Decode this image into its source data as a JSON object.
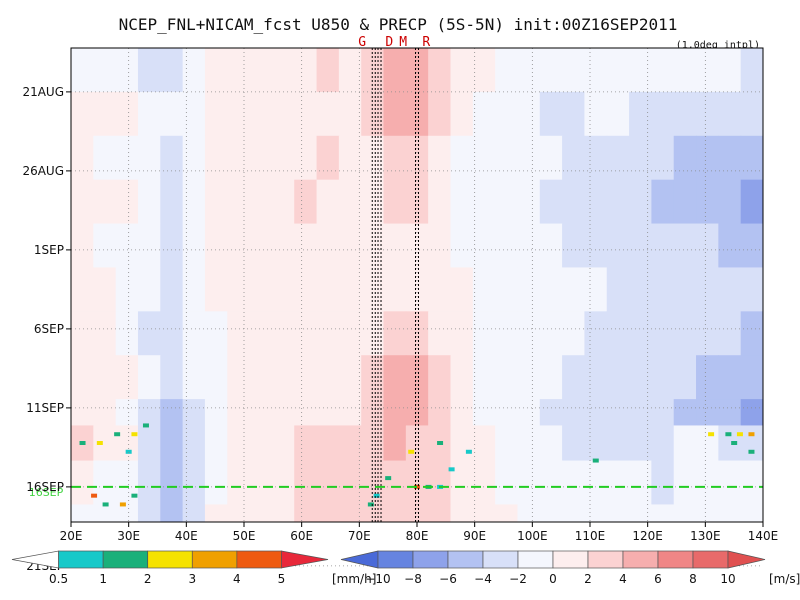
{
  "chart_data": {
    "type": "heatmap",
    "title": "NCEP_FNL+NICAM_fcst U850 & PRECP (5S-5N) init:00Z16SEP2011",
    "subtitle": "(1.0deg intpl)",
    "x_ticks": [
      "20E",
      "30E",
      "40E",
      "50E",
      "60E",
      "70E",
      "80E",
      "90E",
      "100E",
      "110E",
      "120E",
      "130E",
      "140E"
    ],
    "x_range": [
      20,
      140
    ],
    "y_ticks": [
      "21AUG",
      "26AUG",
      "1SEP",
      "6SEP",
      "11SEP",
      "16SEP",
      "21SEP"
    ],
    "init_marker": {
      "label": "16SEP",
      "color": "#22cc22"
    },
    "markers": [
      {
        "label": "G",
        "lon": 72.5,
        "color": "#cc0000"
      },
      {
        "label": "D",
        "lon": 73.5,
        "color": "#cc0000"
      },
      {
        "label": "M",
        "lon": 80.0,
        "color": "#cc0000"
      },
      {
        "label": "R",
        "lon": 80.0,
        "color": "#cc0000"
      }
    ],
    "precip_colorbar": {
      "unit": "[mm/h]",
      "ticks": [
        "0.5",
        "1",
        "2",
        "3",
        "4",
        "5"
      ],
      "colors": [
        "#ffffff",
        "#17c9c9",
        "#1ab07a",
        "#f5e200",
        "#f0a000",
        "#ee5a10",
        "#e8283a"
      ]
    },
    "u850_colorbar": {
      "unit": "[m/s]",
      "ticks": [
        "−10",
        "−8",
        "−6",
        "−4",
        "−2",
        "0",
        "2",
        "4",
        "6",
        "8",
        "10"
      ],
      "colors": [
        "#4a6ad8",
        "#6684e0",
        "#8ea2ea",
        "#b3c2f2",
        "#d8e0f8",
        "#f4f6fd",
        "#fdeeee",
        "#fbd2d2",
        "#f6aeae",
        "#f08686",
        "#e86a6a",
        "#e05050"
      ]
    },
    "rows": [
      {
        "t": 0,
        "v": [
          -1,
          -1,
          -2,
          -3,
          -4,
          -2,
          1,
          1,
          1,
          0,
          1,
          2,
          1,
          3,
          5,
          4,
          2,
          1,
          0,
          -1,
          -1,
          -2,
          -2,
          -1,
          -1,
          -1,
          -2,
          -1,
          -1,
          -2,
          -3
        ]
      },
      {
        "t": 5,
        "v": [
          1,
          1,
          0,
          -1,
          -2,
          -1,
          1,
          1,
          0,
          1,
          1,
          1,
          1,
          2,
          4,
          4,
          2,
          0,
          -1,
          -1,
          -2,
          -3,
          -3,
          -2,
          -2,
          -3,
          -3,
          -3,
          -3,
          -4,
          -4
        ]
      },
      {
        "t": 10,
        "v": [
          0,
          -1,
          -1,
          -2,
          -3,
          -1,
          1,
          0,
          1,
          1,
          1,
          2,
          1,
          1,
          3,
          3,
          1,
          -1,
          -2,
          -2,
          -2,
          -2,
          -3,
          -3,
          -3,
          -4,
          -4,
          -5,
          -5,
          -6,
          -6
        ]
      },
      {
        "t": 15,
        "v": [
          1,
          1,
          0,
          -2,
          -3,
          -1,
          0,
          1,
          1,
          1,
          2,
          1,
          1,
          1,
          2,
          2,
          0,
          -1,
          -2,
          -2,
          -2,
          -3,
          -3,
          -3,
          -4,
          -4,
          -5,
          -5,
          -6,
          -6,
          -7
        ]
      },
      {
        "t": 20,
        "v": [
          0,
          -1,
          -1,
          -2,
          -3,
          -1,
          0,
          1,
          0,
          1,
          1,
          1,
          1,
          1,
          1,
          1,
          0,
          -1,
          -1,
          -2,
          -2,
          -2,
          -3,
          -3,
          -3,
          -3,
          -4,
          -4,
          -4,
          -5,
          -5
        ]
      },
      {
        "t": 25,
        "v": [
          1,
          0,
          -1,
          -2,
          -3,
          -2,
          0,
          0,
          1,
          0,
          1,
          1,
          0,
          0,
          1,
          1,
          0,
          0,
          -1,
          -1,
          -2,
          -2,
          -2,
          -2,
          -3,
          -3,
          -3,
          -3,
          -4,
          -4,
          -4
        ]
      },
      {
        "t": 30,
        "v": [
          0,
          0,
          -1,
          -3,
          -4,
          -2,
          -1,
          0,
          0,
          0,
          0,
          1,
          0,
          1,
          2,
          2,
          1,
          0,
          -1,
          -1,
          -1,
          -2,
          -2,
          -3,
          -3,
          -3,
          -3,
          -4,
          -4,
          -4,
          -5
        ]
      },
      {
        "t": 35,
        "v": [
          1,
          1,
          0,
          -2,
          -4,
          -2,
          -1,
          0,
          0,
          1,
          1,
          1,
          1,
          2,
          4,
          4,
          2,
          0,
          -1,
          -2,
          -2,
          -2,
          -3,
          -3,
          -3,
          -3,
          -4,
          -4,
          -5,
          -5,
          -6
        ]
      },
      {
        "t": 40,
        "v": [
          1,
          0,
          -1,
          -3,
          -5,
          -3,
          -1,
          0,
          1,
          1,
          1,
          1,
          1,
          2,
          4,
          4,
          2,
          0,
          -1,
          -2,
          -2,
          -3,
          -3,
          -3,
          -4,
          -4,
          -4,
          -5,
          -5,
          -6,
          -7
        ]
      },
      {
        "t": 43,
        "v": [
          2,
          1,
          0,
          -3,
          -6,
          -4,
          -1,
          0,
          1,
          1,
          2,
          2,
          2,
          3,
          4,
          3,
          2,
          1,
          0,
          -1,
          -2,
          -2,
          -3,
          -3,
          -3,
          -3,
          -3,
          -2,
          -2,
          -3,
          -3
        ]
      },
      {
        "t": 47,
        "v": [
          0,
          -1,
          -2,
          -4,
          -6,
          -4,
          -1,
          1,
          1,
          1,
          2,
          2,
          2,
          3,
          3,
          3,
          2,
          1,
          0,
          -1,
          -1,
          -2,
          -2,
          -2,
          -2,
          -2,
          -3,
          -2,
          -2,
          -2,
          -2
        ]
      },
      {
        "t": 52,
        "v": [
          -1,
          -1,
          -2,
          -4,
          -5,
          -3,
          0,
          1,
          1,
          1,
          2,
          2,
          2,
          3,
          3,
          3,
          2,
          1,
          1,
          0,
          -1,
          -1,
          -1,
          -2,
          -2,
          -2,
          -2,
          -1,
          -1,
          -1,
          -1
        ]
      }
    ],
    "precip": [
      {
        "lon": 22,
        "t": 45,
        "mm": 2
      },
      {
        "lon": 25,
        "t": 45,
        "mm": 3
      },
      {
        "lon": 28,
        "t": 44,
        "mm": 2
      },
      {
        "lon": 30,
        "t": 46,
        "mm": 1
      },
      {
        "lon": 31,
        "t": 44,
        "mm": 3
      },
      {
        "lon": 33,
        "t": 43,
        "mm": 2
      },
      {
        "lon": 24,
        "t": 51,
        "mm": 5
      },
      {
        "lon": 26,
        "t": 52,
        "mm": 2
      },
      {
        "lon": 29,
        "t": 52,
        "mm": 4
      },
      {
        "lon": 31,
        "t": 51,
        "mm": 2
      },
      {
        "lon": 73,
        "t": 51,
        "mm": 1
      },
      {
        "lon": 72,
        "t": 52,
        "mm": 2
      },
      {
        "lon": 75,
        "t": 49,
        "mm": 2
      },
      {
        "lon": 79,
        "t": 46,
        "mm": 3
      },
      {
        "lon": 80,
        "t": 50,
        "mm": 5
      },
      {
        "lon": 82,
        "t": 50,
        "mm": 2
      },
      {
        "lon": 84,
        "t": 50,
        "mm": 1
      },
      {
        "lon": 84,
        "t": 45,
        "mm": 2
      },
      {
        "lon": 86,
        "t": 48,
        "mm": 1
      },
      {
        "lon": 89,
        "t": 46,
        "mm": 1
      },
      {
        "lon": 111,
        "t": 47,
        "mm": 2
      },
      {
        "lon": 131,
        "t": 44,
        "mm": 3
      },
      {
        "lon": 134,
        "t": 44,
        "mm": 2
      },
      {
        "lon": 136,
        "t": 44,
        "mm": 3
      },
      {
        "lon": 138,
        "t": 44,
        "mm": 4
      },
      {
        "lon": 135,
        "t": 45,
        "mm": 2
      },
      {
        "lon": 138,
        "t": 46,
        "mm": 2
      }
    ]
  }
}
